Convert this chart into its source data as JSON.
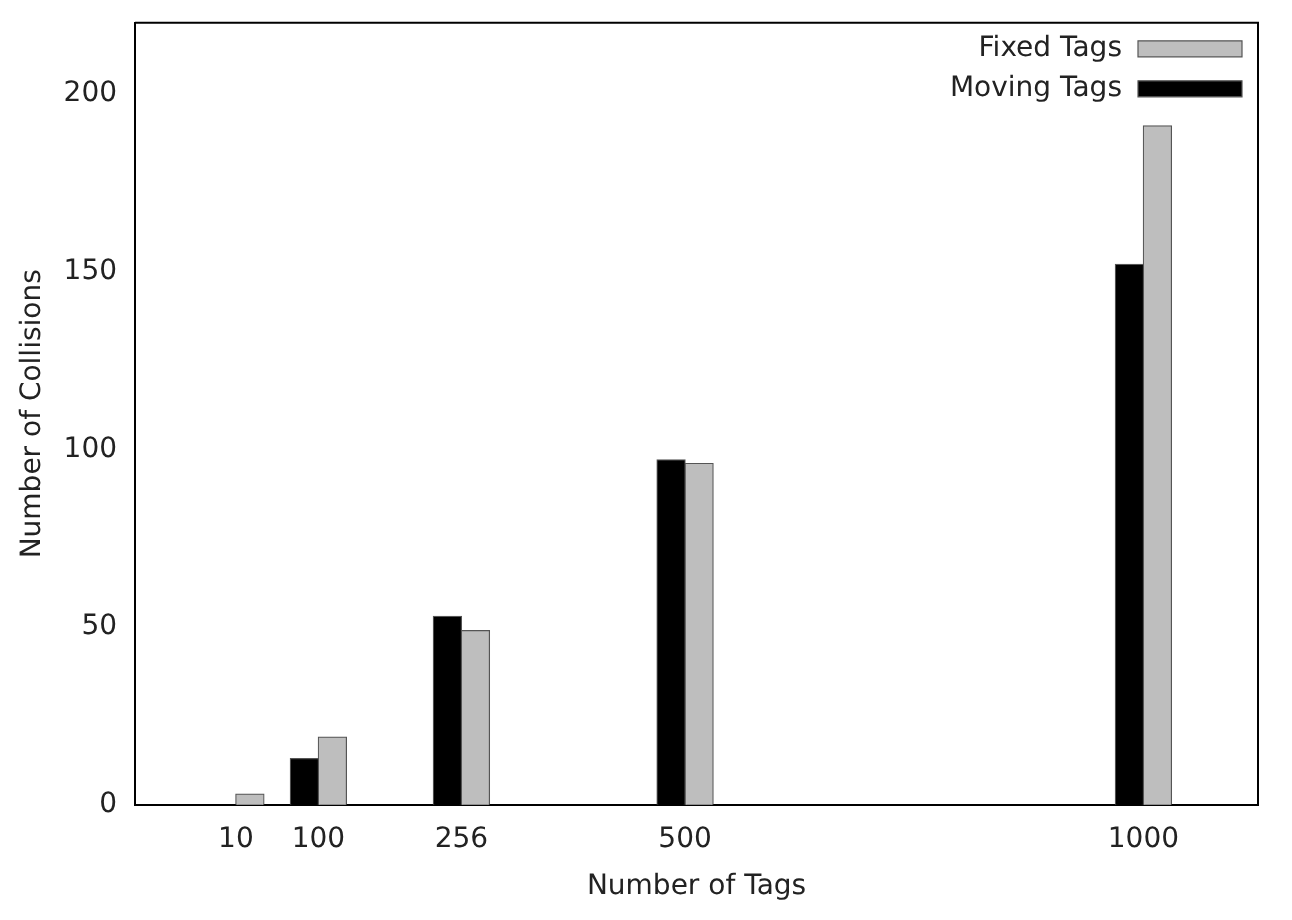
{
  "chart_data": {
    "type": "bar",
    "xlabel": "Number of Tags",
    "ylabel": "Number of Collisions",
    "x": [
      10,
      100,
      256,
      500,
      1000
    ],
    "series": [
      {
        "name": "Moving Tags",
        "color": "#000000",
        "values": [
          0,
          13,
          53,
          97,
          152
        ]
      },
      {
        "name": "Fixed Tags",
        "color": "#bebebe",
        "values": [
          3,
          19,
          49,
          96,
          191
        ]
      }
    ],
    "xlim": [
      -100,
      1125
    ],
    "xticks": [
      10,
      100,
      256,
      500,
      1000
    ],
    "ylim": [
      0,
      220
    ],
    "yticks": [
      0,
      50,
      100,
      150,
      200
    ],
    "legend": "top right"
  }
}
